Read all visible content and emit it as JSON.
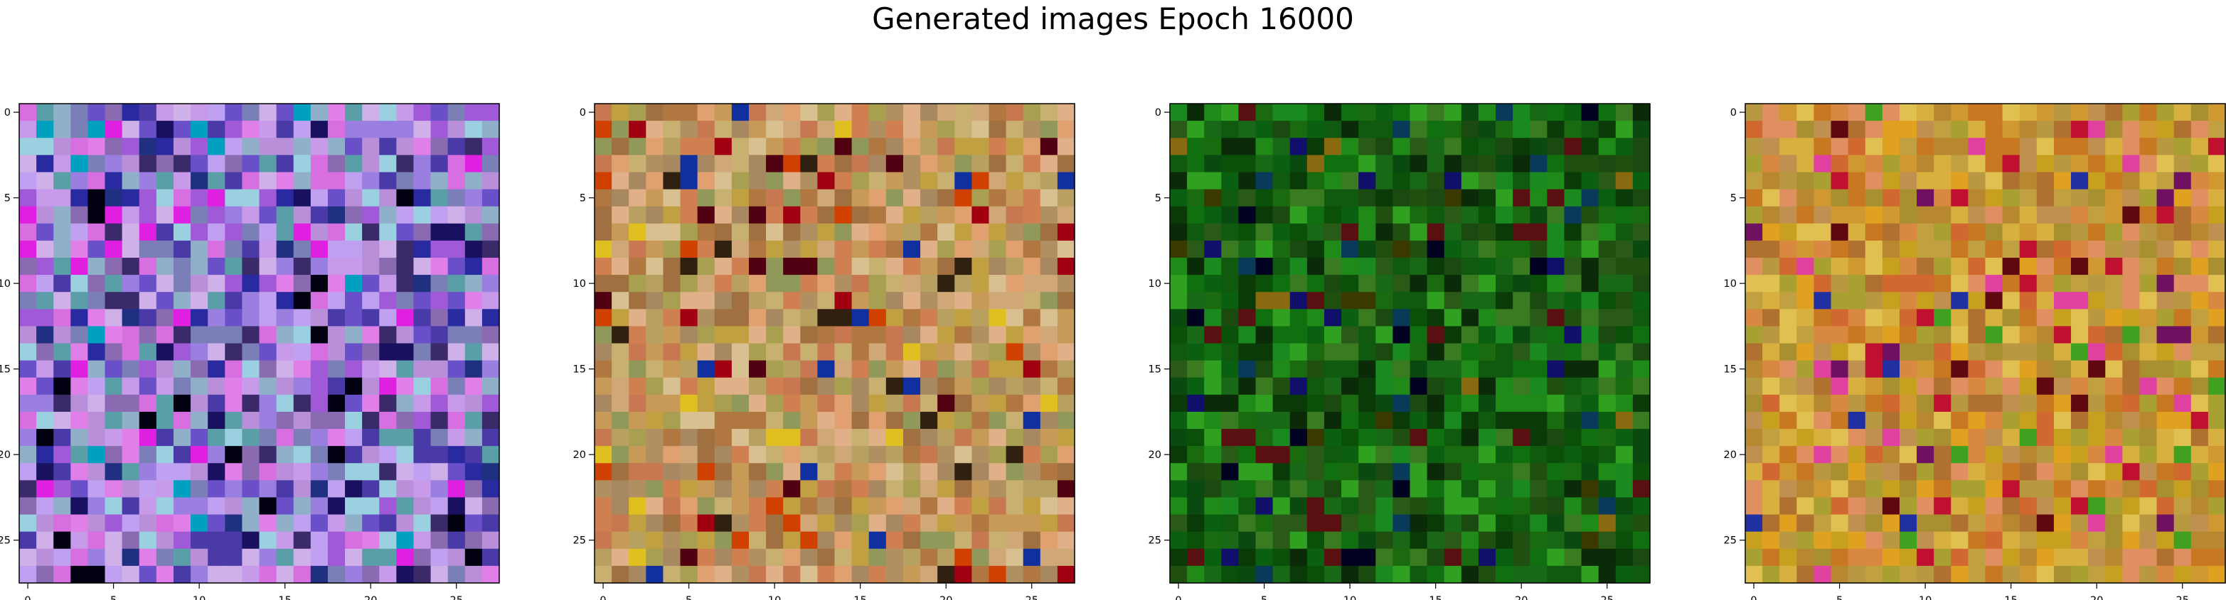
{
  "figure": {
    "title": "Generated images Epoch 16000"
  },
  "chart_data": {
    "type": "heatmap",
    "title": "Generated images Epoch 16000",
    "grid": false,
    "image_shape": [
      28,
      28
    ],
    "x_ticks": [
      0,
      5,
      10,
      15,
      20,
      25
    ],
    "y_ticks": [
      0,
      5,
      10,
      15,
      20,
      25
    ],
    "xlim": [
      -0.5,
      27.5
    ],
    "ylim": [
      27.5,
      -0.5
    ],
    "panels": [
      {
        "palette": [
          "#9a7fe0",
          "#c79aea",
          "#7b7fb8",
          "#d86fe0",
          "#8fb0c8",
          "#5a9fa8",
          "#b88fd8",
          "#6a50c8",
          "#e07fe8",
          "#9ad0e0",
          "#4a3aa8",
          "#c0a0f0",
          "#8a6ab0",
          "#3a2a6a",
          "#d0b0e8",
          "#a05ad8"
        ],
        "accents": [
          "#000010",
          "#1a1060",
          "#2a2aa0",
          "#00a0c0",
          "#e020e0",
          "#203080"
        ]
      },
      {
        "palette": [
          "#c89a58",
          "#b8a060",
          "#d0a878",
          "#a8a050",
          "#c8b070",
          "#e0b088",
          "#b07840",
          "#d08050",
          "#c0a040",
          "#a88860",
          "#d8c090",
          "#90985a",
          "#c87850",
          "#b09060",
          "#e0a070",
          "#a07040"
        ],
        "accents": [
          "#a00010",
          "#d04000",
          "#500010",
          "#1030a0",
          "#e0c020",
          "#302010"
        ]
      },
      {
        "palette": [
          "#1a6a10",
          "#0a5008",
          "#208a18",
          "#0a3a08",
          "#107010",
          "#2a5a18",
          "#1a8a20",
          "#0a4a10",
          "#3a7a20",
          "#105a10",
          "#0a2a08",
          "#1a4a10",
          "#30a020",
          "#0a6010",
          "#205010",
          "#186818"
        ],
        "accents": [
          "#000020",
          "#10106a",
          "#5a1010",
          "#3a3a00",
          "#0a3a5a",
          "#8a6a10"
        ]
      },
      {
        "palette": [
          "#d09830",
          "#c0a040",
          "#e0a020",
          "#b88830",
          "#c87820",
          "#d8b040",
          "#a8a030",
          "#d06830",
          "#e0c050",
          "#b07030",
          "#c09050",
          "#d88840",
          "#a89030",
          "#e09060",
          "#c8a020",
          "#b89840"
        ],
        "accents": [
          "#c01030",
          "#2030a0",
          "#701060",
          "#e040a0",
          "#40a020",
          "#600810"
        ]
      }
    ]
  }
}
